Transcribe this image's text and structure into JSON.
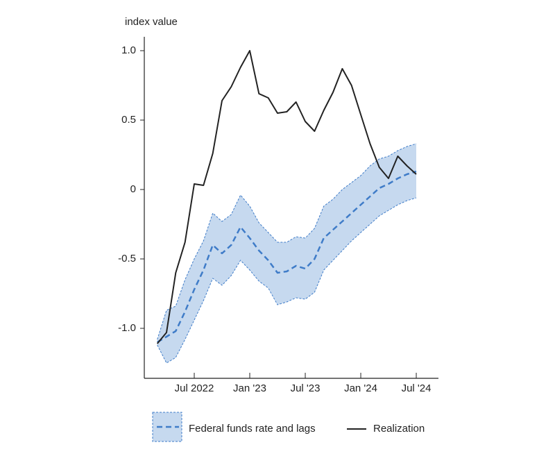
{
  "chart_data": {
    "type": "line",
    "y_label": "index value",
    "x": [
      "2022-03",
      "2022-04",
      "2022-05",
      "2022-06",
      "2022-07",
      "2022-08",
      "2022-09",
      "2022-10",
      "2022-11",
      "2022-12",
      "2023-01",
      "2023-02",
      "2023-03",
      "2023-04",
      "2023-05",
      "2023-06",
      "2023-07",
      "2023-08",
      "2023-09",
      "2023-10",
      "2023-11",
      "2023-12",
      "2024-01",
      "2024-02",
      "2024-03",
      "2024-04",
      "2024-05",
      "2024-06",
      "2024-07"
    ],
    "xlim": [
      "2022-01",
      "2024-09"
    ],
    "xticks": [
      {
        "value": "2022-07",
        "label": "Jul 2022"
      },
      {
        "value": "2023-01",
        "label": "Jan '23"
      },
      {
        "value": "2023-07",
        "label": "Jul '23"
      },
      {
        "value": "2024-01",
        "label": "Jan '24"
      },
      {
        "value": "2024-07",
        "label": "Jul '24"
      }
    ],
    "ylim": [
      -1.36,
      1.1
    ],
    "yticks": [
      {
        "value": 1,
        "label": "1.0"
      },
      0.5,
      0,
      -0.5,
      {
        "value": -1,
        "label": "-1.0"
      }
    ],
    "series": [
      {
        "name": "Federal funds rate and lags",
        "color": "#3f7cc8",
        "band_color": "#c6d9ef",
        "values": [
          -1.1,
          -1.06,
          -1.02,
          -0.88,
          -0.72,
          -0.58,
          -0.4,
          -0.46,
          -0.4,
          -0.27,
          -0.35,
          -0.44,
          -0.51,
          -0.6,
          -0.59,
          -0.55,
          -0.57,
          -0.5,
          -0.35,
          -0.29,
          -0.23,
          -0.17,
          -0.11,
          -0.05,
          0.01,
          0.04,
          0.08,
          0.11,
          0.13
        ],
        "upper": [
          -1.08,
          -0.87,
          -0.84,
          -0.65,
          -0.5,
          -0.37,
          -0.17,
          -0.23,
          -0.18,
          -0.04,
          -0.12,
          -0.24,
          -0.31,
          -0.38,
          -0.38,
          -0.34,
          -0.35,
          -0.28,
          -0.12,
          -0.07,
          0.0,
          0.05,
          0.1,
          0.17,
          0.22,
          0.24,
          0.28,
          0.31,
          0.33
        ],
        "lower": [
          -1.12,
          -1.25,
          -1.21,
          -1.08,
          -0.94,
          -0.8,
          -0.64,
          -0.69,
          -0.62,
          -0.51,
          -0.58,
          -0.66,
          -0.71,
          -0.83,
          -0.81,
          -0.78,
          -0.79,
          -0.74,
          -0.58,
          -0.51,
          -0.44,
          -0.37,
          -0.31,
          -0.25,
          -0.19,
          -0.15,
          -0.11,
          -0.08,
          -0.06
        ]
      },
      {
        "name": "Realization",
        "color": "#222222",
        "values": [
          -1.11,
          -1.03,
          -0.6,
          -0.38,
          0.04,
          0.03,
          0.26,
          0.64,
          0.74,
          0.88,
          1.0,
          0.69,
          0.66,
          0.55,
          0.56,
          0.63,
          0.49,
          0.42,
          0.57,
          0.7,
          0.87,
          0.75,
          0.54,
          0.33,
          0.16,
          0.08,
          0.24,
          0.17,
          0.11
        ]
      }
    ]
  }
}
